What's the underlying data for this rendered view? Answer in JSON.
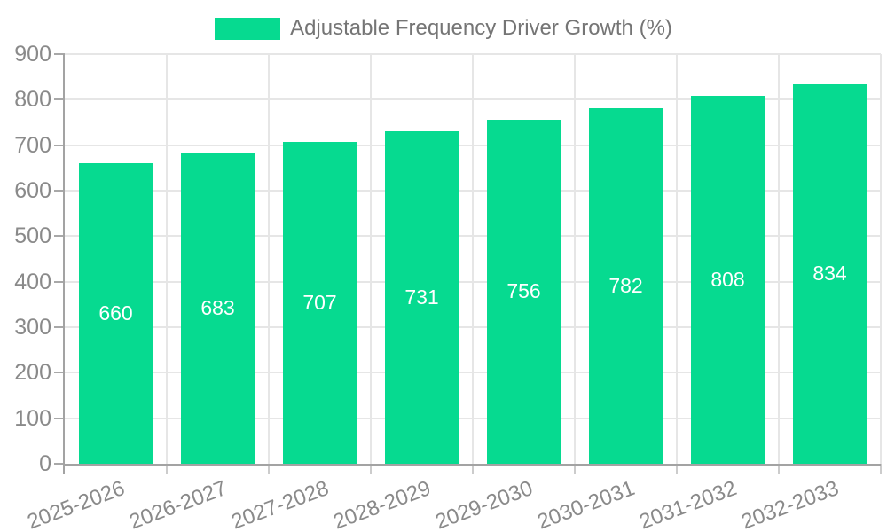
{
  "legend": {
    "label": "Adjustable Frequency Driver Growth (%)"
  },
  "chart_data": {
    "type": "bar",
    "title": "Adjustable Frequency Driver Growth (%)",
    "categories": [
      "2025-2026",
      "2026-2027",
      "2027-2028",
      "2028-2029",
      "2029-2030",
      "2030-2031",
      "2031-2032",
      "2032-2033"
    ],
    "values": [
      660,
      683,
      707,
      731,
      756,
      782,
      808,
      834
    ],
    "xlabel": "",
    "ylabel": "",
    "ylim": [
      0,
      900
    ],
    "y_tick_step": 100,
    "y_tick_labels": [
      "0",
      "100",
      "200",
      "300",
      "400",
      "500",
      "600",
      "700",
      "800",
      "900"
    ],
    "grid": true,
    "grid_vertical": true,
    "legend_position": "top-center",
    "bar_labels_inside": true,
    "x_label_rotation_deg": -20.5,
    "colors": {
      "bar": "#06da90",
      "bar_value_label": "#ffffff",
      "axis_line": "#a3a3a3",
      "grid_line": "#e6e6e6",
      "y_tick_mark": "#a8a8a8",
      "x_tick_mark": "#cccccc",
      "tick_label": "#8a8a8a",
      "legend_text": "#757575",
      "background": "#ffffff"
    }
  }
}
